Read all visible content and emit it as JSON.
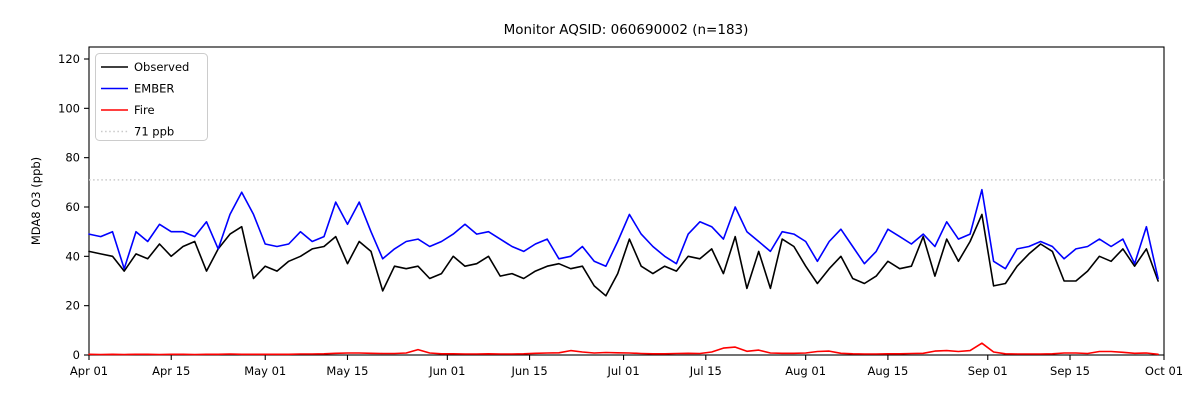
{
  "title": "Monitor AQSID: 060690002 (n=183)",
  "chart_data": {
    "type": "line",
    "title": "Monitor AQSID: 060690002 (n=183)",
    "xlabel": "",
    "ylabel": "MDA8 O3 (ppb)",
    "n_days": 183,
    "x_range_labels": [
      "Apr 01",
      "Oct 01"
    ],
    "sample_interval_days": 2,
    "ylim": [
      0,
      125
    ],
    "yticks": [
      0,
      20,
      40,
      60,
      80,
      100,
      120
    ],
    "xticks": [
      {
        "day": 0,
        "label": "Apr 01"
      },
      {
        "day": 14,
        "label": "Apr 15"
      },
      {
        "day": 30,
        "label": "May 01"
      },
      {
        "day": 44,
        "label": "May 15"
      },
      {
        "day": 61,
        "label": "Jun 01"
      },
      {
        "day": 75,
        "label": "Jun 15"
      },
      {
        "day": 91,
        "label": "Jul 01"
      },
      {
        "day": 105,
        "label": "Jul 15"
      },
      {
        "day": 122,
        "label": "Aug 01"
      },
      {
        "day": 136,
        "label": "Aug 15"
      },
      {
        "day": 153,
        "label": "Sep 01"
      },
      {
        "day": 167,
        "label": "Sep 15"
      },
      {
        "day": 183,
        "label": "Oct 01"
      }
    ],
    "grid": false,
    "legend_position": "upper left",
    "threshold": {
      "value": 71,
      "label": "71 ppb",
      "color": "#c9c9c9",
      "style": "dotted"
    },
    "legend_entries": [
      {
        "label": "Observed",
        "color": "#000000",
        "style": "solid"
      },
      {
        "label": "EMBER",
        "color": "#0000ff",
        "style": "solid"
      },
      {
        "label": "Fire",
        "color": "#ff0000",
        "style": "solid"
      },
      {
        "label": "71 ppb",
        "color": "#c9c9c9",
        "style": "dotted"
      }
    ],
    "series": [
      {
        "name": "Observed",
        "color": "#000000",
        "values": [
          42,
          41,
          40,
          34,
          41,
          39,
          45,
          40,
          44,
          46,
          34,
          43,
          49,
          52,
          31,
          36,
          34,
          38,
          40,
          43,
          44,
          48,
          37,
          46,
          42,
          26,
          36,
          35,
          36,
          31,
          33,
          40,
          36,
          37,
          40,
          32,
          33,
          31,
          34,
          36,
          37,
          35,
          36,
          28,
          24,
          33,
          47,
          36,
          33,
          36,
          34,
          40,
          39,
          43,
          33,
          48,
          27,
          42,
          27,
          47,
          44,
          36,
          29,
          35,
          40,
          31,
          29,
          32,
          38,
          35,
          36,
          48,
          32,
          47,
          38,
          46,
          57,
          28,
          29,
          36,
          41,
          45,
          42,
          30,
          30,
          34,
          40,
          38,
          43,
          36,
          43,
          30
        ]
      },
      {
        "name": "EMBER",
        "color": "#0000ff",
        "values": [
          49,
          48,
          50,
          35,
          50,
          46,
          53,
          50,
          50,
          48,
          54,
          43,
          57,
          66,
          57,
          45,
          44,
          45,
          50,
          46,
          48,
          62,
          53,
          62,
          50,
          39,
          43,
          46,
          47,
          44,
          46,
          49,
          53,
          49,
          50,
          47,
          44,
          42,
          45,
          47,
          39,
          40,
          44,
          38,
          36,
          46,
          57,
          49,
          44,
          40,
          37,
          49,
          54,
          52,
          47,
          60,
          50,
          46,
          42,
          50,
          49,
          46,
          38,
          46,
          51,
          44,
          37,
          42,
          51,
          48,
          45,
          49,
          44,
          54,
          47,
          49,
          67,
          38,
          35,
          43,
          44,
          46,
          44,
          39,
          43,
          44,
          47,
          44,
          47,
          37,
          52,
          31
        ]
      },
      {
        "name": "Fire",
        "color": "#ff0000",
        "values": [
          0.3,
          0.2,
          0.3,
          0.2,
          0.3,
          0.3,
          0.2,
          0.3,
          0.3,
          0.2,
          0.3,
          0.3,
          0.4,
          0.3,
          0.3,
          0.3,
          0.3,
          0.3,
          0.4,
          0.4,
          0.5,
          0.7,
          0.8,
          0.8,
          0.7,
          0.6,
          0.6,
          0.8,
          2.2,
          0.8,
          0.5,
          0.5,
          0.4,
          0.4,
          0.5,
          0.4,
          0.4,
          0.5,
          0.7,
          0.8,
          0.9,
          1.8,
          1.2,
          0.8,
          1.0,
          0.9,
          0.8,
          0.6,
          0.5,
          0.5,
          0.6,
          0.7,
          0.6,
          1.2,
          2.8,
          3.2,
          1.5,
          2.0,
          0.8,
          0.7,
          0.7,
          0.8,
          1.4,
          1.6,
          0.7,
          0.5,
          0.4,
          0.4,
          0.5,
          0.5,
          0.6,
          0.7,
          1.6,
          1.8,
          1.4,
          1.8,
          4.8,
          1.2,
          0.5,
          0.4,
          0.4,
          0.4,
          0.5,
          0.8,
          0.8,
          0.6,
          1.4,
          1.4,
          1.1,
          0.7,
          0.8,
          0.3
        ]
      }
    ]
  }
}
